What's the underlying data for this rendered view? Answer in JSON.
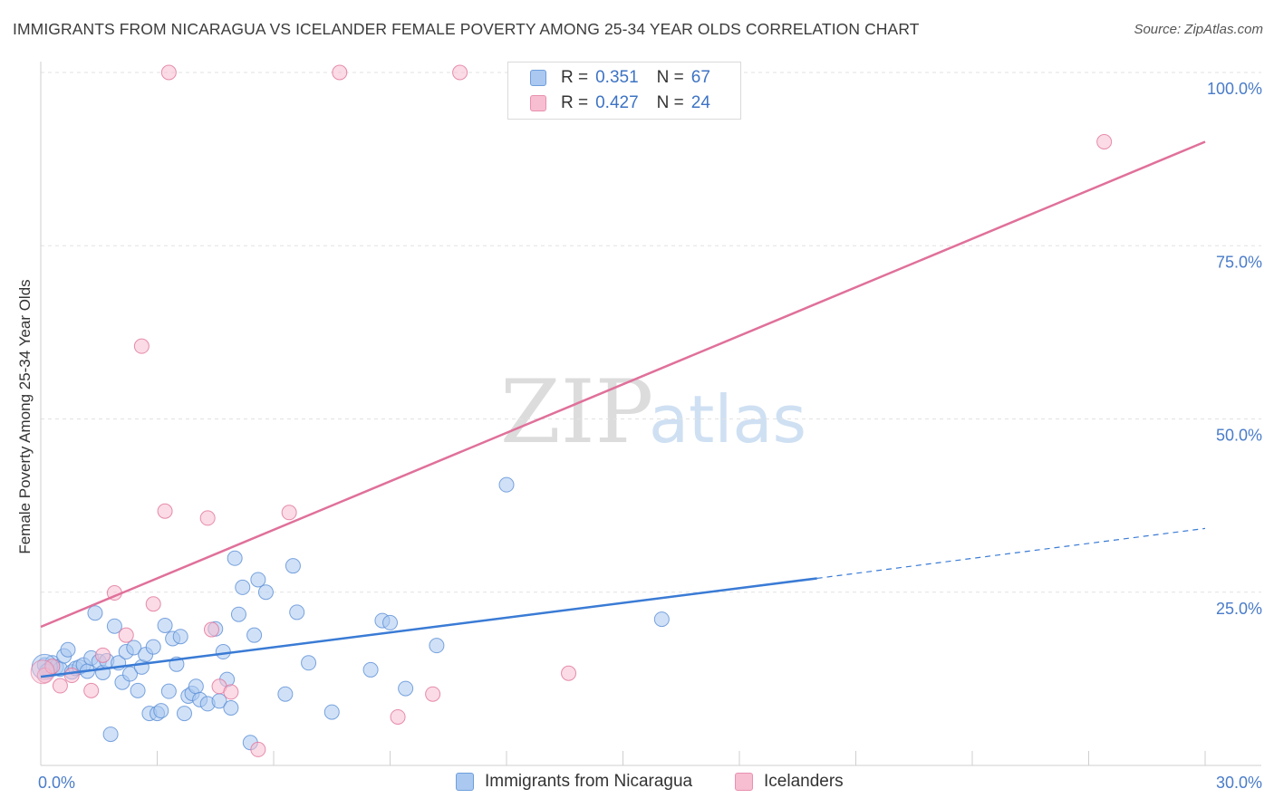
{
  "header": {
    "title": "IMMIGRANTS FROM NICARAGUA VS ICELANDER FEMALE POVERTY AMONG 25-34 YEAR OLDS CORRELATION CHART",
    "source": "Source: ZipAtlas.com"
  },
  "legend": {
    "rows": [
      {
        "r_label": "R =",
        "r_value": "0.351",
        "n_label": "N =",
        "n_value": "67",
        "color": "#aac8f0"
      },
      {
        "r_label": "R =",
        "r_value": "0.427",
        "n_label": "N =",
        "n_value": "24",
        "color": "#f7bdd0"
      }
    ]
  },
  "bottom_legend": [
    {
      "label": "Immigrants from Nicaragua",
      "color": "#aac8f0"
    },
    {
      "label": "Icelanders",
      "color": "#f7bdd0"
    }
  ],
  "watermark": {
    "zip": "ZIP",
    "atlas": "atlas"
  },
  "chart_data": {
    "type": "scatter",
    "title": "IMMIGRANTS FROM NICARAGUA VS ICELANDER FEMALE POVERTY AMONG 25-34 YEAR OLDS CORRELATION CHART",
    "xlabel": "",
    "ylabel": "Female Poverty Among 25-34 Year Olds",
    "xlim": [
      0,
      30
    ],
    "ylim": [
      0,
      100
    ],
    "x_tick_labels": [
      {
        "value": 0,
        "label": "0.0%"
      },
      {
        "value": 30,
        "label": "30.0%"
      }
    ],
    "y_tick_labels": [
      {
        "value": 25,
        "label": "25.0%"
      },
      {
        "value": 50,
        "label": "50.0%"
      },
      {
        "value": 75,
        "label": "75.0%"
      },
      {
        "value": 100,
        "label": "100.0%"
      }
    ],
    "grid": true,
    "legend_position": "top-center",
    "series": [
      {
        "name": "Immigrants from Nicaragua",
        "color": "#5b8fd6",
        "fill": "#aac8f0",
        "trend": {
          "x0": 0,
          "y0": 12.8,
          "x1": 20,
          "y1": 27.0,
          "dashed_to_x": 30,
          "dashed_to_y": 34.2
        },
        "points": [
          [
            0.1,
            14.5
          ],
          [
            0.2,
            13.8
          ],
          [
            0.3,
            14.8
          ],
          [
            0.4,
            14.2
          ],
          [
            0.5,
            13.9
          ],
          [
            0.6,
            15.8
          ],
          [
            0.7,
            16.7
          ],
          [
            0.8,
            13.5
          ],
          [
            0.9,
            14.0
          ],
          [
            1.0,
            14.2
          ],
          [
            1.1,
            14.5
          ],
          [
            1.2,
            13.6
          ],
          [
            1.3,
            15.5
          ],
          [
            1.4,
            22.0
          ],
          [
            1.5,
            15.0
          ],
          [
            1.6,
            13.4
          ],
          [
            1.7,
            15.1
          ],
          [
            1.8,
            4.5
          ],
          [
            1.9,
            20.1
          ],
          [
            2.0,
            14.8
          ],
          [
            2.1,
            12.0
          ],
          [
            2.2,
            16.4
          ],
          [
            2.3,
            13.2
          ],
          [
            2.4,
            17.0
          ],
          [
            2.5,
            10.8
          ],
          [
            2.6,
            14.2
          ],
          [
            2.7,
            16.0
          ],
          [
            2.8,
            7.5
          ],
          [
            2.9,
            17.1
          ],
          [
            3.0,
            7.5
          ],
          [
            3.1,
            7.9
          ],
          [
            3.2,
            20.2
          ],
          [
            3.3,
            10.7
          ],
          [
            3.4,
            18.3
          ],
          [
            3.5,
            14.6
          ],
          [
            3.6,
            18.6
          ],
          [
            3.7,
            7.5
          ],
          [
            3.8,
            10.0
          ],
          [
            3.9,
            10.4
          ],
          [
            4.0,
            11.4
          ],
          [
            4.1,
            9.5
          ],
          [
            4.3,
            8.9
          ],
          [
            4.5,
            19.7
          ],
          [
            4.6,
            9.3
          ],
          [
            4.7,
            16.4
          ],
          [
            4.8,
            12.4
          ],
          [
            4.9,
            8.3
          ],
          [
            5.1,
            21.8
          ],
          [
            5.0,
            29.9
          ],
          [
            5.2,
            25.7
          ],
          [
            5.4,
            3.3
          ],
          [
            5.5,
            18.8
          ],
          [
            5.6,
            26.8
          ],
          [
            5.8,
            25.0
          ],
          [
            6.3,
            10.3
          ],
          [
            6.5,
            28.8
          ],
          [
            6.6,
            22.1
          ],
          [
            6.9,
            14.8
          ],
          [
            7.5,
            7.7
          ],
          [
            8.5,
            13.8
          ],
          [
            8.8,
            20.9
          ],
          [
            9.0,
            20.6
          ],
          [
            9.4,
            11.1
          ],
          [
            10.2,
            17.3
          ],
          [
            12.0,
            40.5
          ],
          [
            16.0,
            21.1
          ],
          [
            0.15,
            13.6
          ]
        ]
      },
      {
        "name": "Icelanders",
        "color": "#e0739a",
        "fill": "#f7bdd0",
        "trend": {
          "x0": 0,
          "y0": 20.0,
          "x1": 30,
          "y1": 90.0
        },
        "points": [
          [
            0.1,
            13.0
          ],
          [
            0.3,
            14.3
          ],
          [
            0.5,
            11.5
          ],
          [
            0.8,
            13.0
          ],
          [
            1.3,
            10.8
          ],
          [
            1.6,
            15.9
          ],
          [
            1.9,
            24.9
          ],
          [
            2.2,
            18.8
          ],
          [
            2.6,
            60.5
          ],
          [
            2.9,
            23.3
          ],
          [
            3.2,
            36.7
          ],
          [
            3.3,
            100.0
          ],
          [
            4.3,
            35.7
          ],
          [
            4.4,
            19.6
          ],
          [
            4.6,
            11.4
          ],
          [
            4.9,
            10.6
          ],
          [
            5.6,
            2.3
          ],
          [
            6.4,
            36.5
          ],
          [
            7.7,
            100.0
          ],
          [
            9.2,
            7.0
          ],
          [
            10.1,
            10.3
          ],
          [
            10.8,
            100.0
          ],
          [
            13.6,
            13.3
          ],
          [
            27.4,
            90.0
          ]
        ]
      }
    ]
  }
}
